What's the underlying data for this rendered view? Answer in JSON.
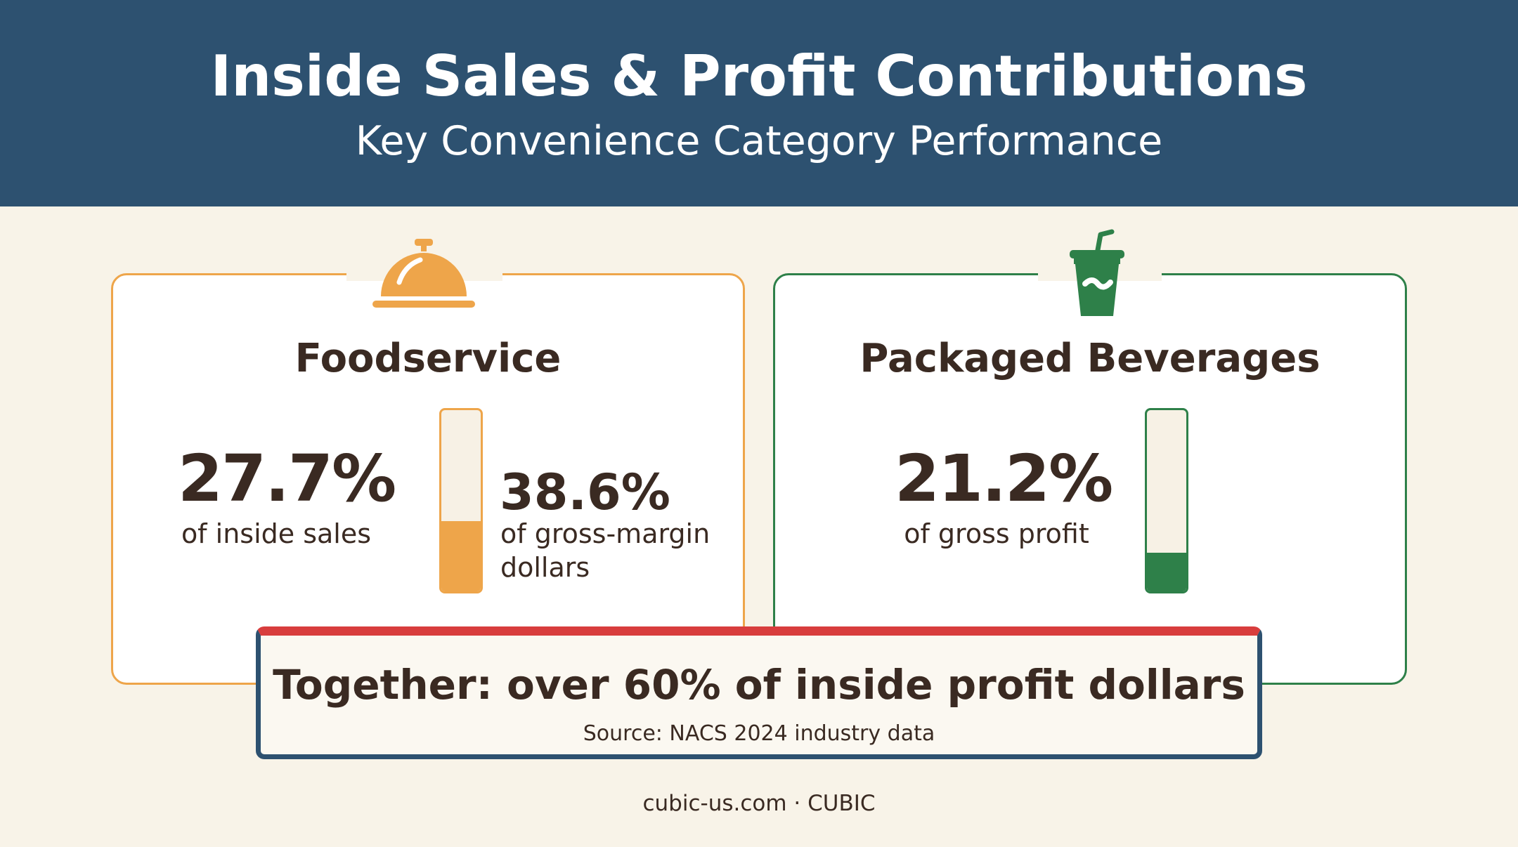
{
  "header": {
    "title": "Inside Sales & Profit Contributions",
    "subtitle": "Key Convenience Category Performance"
  },
  "cards": [
    {
      "title": "Foodservice",
      "icon": "cloche-icon",
      "accent_color": "#eea54a",
      "stats": [
        {
          "value": "27.7%",
          "label": "of inside sales"
        },
        {
          "value": "38.6%",
          "label_line1": "of gross-margin",
          "label_line2": "dollars"
        }
      ],
      "gauge_percent": 38.6
    },
    {
      "title": "Packaged Beverages",
      "icon": "drink-cup-icon",
      "accent_color": "#2e8049",
      "stats": [
        {
          "value": "21.2%",
          "label": "of gross profit"
        }
      ],
      "gauge_percent": 21.2
    }
  ],
  "banner": {
    "headline": "Together: over 60% of inside profit dollars",
    "source": "Source: NACS 2024 industry data"
  },
  "footer": {
    "text": "cubic-us.com · CUBIC"
  },
  "colors": {
    "header_bg": "#2d5170",
    "page_bg": "#f8f3e8",
    "banner_top": "#d83d3d",
    "text": "#3a2a22"
  }
}
